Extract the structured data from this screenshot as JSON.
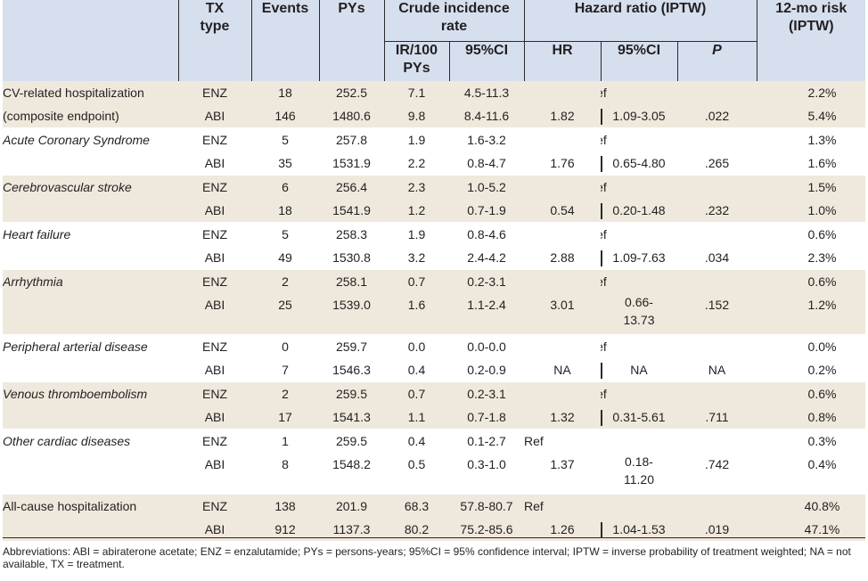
{
  "header": {
    "tx_type": "TX type",
    "events": "Events",
    "pys": "PYs",
    "crude": "Crude incidence rate",
    "ir": "IR/100 PYs",
    "ci95": "95%CI",
    "hazard": "Hazard ratio (IPTW)",
    "hr": "HR",
    "hr_ci": "95%CI",
    "p": "P",
    "risk": "12-mo risk (IPTW)"
  },
  "groups": [
    {
      "label": "CV-related hospitalization",
      "label2": "(composite endpoint)",
      "italic": false,
      "shade": true,
      "rows": [
        {
          "tx": "ENZ",
          "events": "18",
          "pys": "252.5",
          "ir": "7.1",
          "ci": "4.5-11.3",
          "hr": "",
          "hr_ci": "",
          "p": "",
          "ref": "Ref",
          "risk": "2.2%"
        },
        {
          "tx": "ABI",
          "events": "146",
          "pys": "1480.6",
          "ir": "9.8",
          "ci": "8.4-11.6",
          "hr": "1.82",
          "hr_ci": "1.09-3.05",
          "p": ".022",
          "ref": "",
          "risk": "5.4%"
        }
      ]
    },
    {
      "label": "Acute Coronary Syndrome",
      "italic": true,
      "shade": false,
      "rows": [
        {
          "tx": "ENZ",
          "events": "5",
          "pys": "257.8",
          "ir": "1.9",
          "ci": "1.6-3.2",
          "hr": "",
          "hr_ci": "",
          "p": "",
          "ref": "Ref",
          "risk": "1.3%"
        },
        {
          "tx": "ABI",
          "events": "35",
          "pys": "1531.9",
          "ir": "2.2",
          "ci": "0.8-4.7",
          "hr": "1.76",
          "hr_ci": "0.65-4.80",
          "p": ".265",
          "ref": "",
          "risk": "1.6%"
        }
      ]
    },
    {
      "label": "Cerebrovascular stroke",
      "italic": true,
      "shade": true,
      "rows": [
        {
          "tx": "ENZ",
          "events": "6",
          "pys": "256.4",
          "ir": "2.3",
          "ci": "1.0-5.2",
          "hr": "",
          "hr_ci": "",
          "p": "",
          "ref": "Ref",
          "risk": "1.5%"
        },
        {
          "tx": "ABI",
          "events": "18",
          "pys": "1541.9",
          "ir": "1.2",
          "ci": "0.7-1.9",
          "hr": "0.54",
          "hr_ci": "0.20-1.48",
          "p": ".232",
          "ref": "",
          "risk": "1.0%"
        }
      ]
    },
    {
      "label": "Heart failure",
      "italic": true,
      "shade": false,
      "rows": [
        {
          "tx": "ENZ",
          "events": "5",
          "pys": "258.3",
          "ir": "1.9",
          "ci": "0.8-4.6",
          "hr": "",
          "hr_ci": "",
          "p": "",
          "ref": "Ref",
          "risk": "0.6%"
        },
        {
          "tx": "ABI",
          "events": "49",
          "pys": "1530.8",
          "ir": "3.2",
          "ci": "2.4-4.2",
          "hr": "2.88",
          "hr_ci": "1.09-7.63",
          "p": ".034",
          "ref": "",
          "risk": "2.3%"
        }
      ]
    },
    {
      "label": "Arrhythmia",
      "italic": true,
      "shade": true,
      "rows": [
        {
          "tx": "ENZ",
          "events": "2",
          "pys": "258.1",
          "ir": "0.7",
          "ci": "0.2-3.1",
          "hr": "",
          "hr_ci": "",
          "p": "",
          "ref": "Ref",
          "risk": "0.6%"
        },
        {
          "tx": "ABI",
          "events": "25",
          "pys": "1539.0",
          "ir": "1.6",
          "ci": "1.1-2.4",
          "hr": "3.01",
          "hr_ci": "0.66-13.73",
          "p": ".152",
          "ref": "",
          "risk": "1.2%",
          "tall": true,
          "nobar": true
        }
      ]
    },
    {
      "label": "Peripheral arterial disease",
      "italic": true,
      "shade": false,
      "rows": [
        {
          "tx": "ENZ",
          "events": "0",
          "pys": "259.7",
          "ir": "0.0",
          "ci": "0.0-0.0",
          "hr": "",
          "hr_ci": "",
          "p": "",
          "ref": "Ref",
          "risk": "0.0%"
        },
        {
          "tx": "ABI",
          "events": "7",
          "pys": "1546.3",
          "ir": "0.4",
          "ci": "0.2-0.9",
          "hr": "NA",
          "hr_ci": "NA",
          "p": "NA",
          "ref": "",
          "risk": "0.2%"
        }
      ]
    },
    {
      "label": "Venous thromboembolism",
      "italic": true,
      "shade": true,
      "rows": [
        {
          "tx": "ENZ",
          "events": "2",
          "pys": "259.5",
          "ir": "0.7",
          "ci": "0.2-3.1",
          "hr": "",
          "hr_ci": "",
          "p": "",
          "ref": "Ref",
          "risk": "0.6%"
        },
        {
          "tx": "ABI",
          "events": "17",
          "pys": "1541.3",
          "ir": "1.1",
          "ci": "0.7-1.8",
          "hr": "1.32",
          "hr_ci": "0.31-5.61",
          "p": ".711",
          "ref": "",
          "risk": "0.8%"
        }
      ]
    },
    {
      "label": "Other cardiac diseases",
      "italic": true,
      "shade": false,
      "rows": [
        {
          "tx": "ENZ",
          "events": "1",
          "pys": "259.5",
          "ir": "0.4",
          "ci": "0.1-2.7",
          "hr": "Ref",
          "hr_ci": "",
          "p": "",
          "ref": "",
          "risk": "0.3%"
        },
        {
          "tx": "ABI",
          "events": "8",
          "pys": "1548.2",
          "ir": "0.5",
          "ci": "0.3-1.0",
          "hr": "1.37",
          "hr_ci": "0.18-11.20",
          "p": ".742",
          "ref": "",
          "risk": "0.4%",
          "tall": true,
          "nobar": true
        }
      ]
    },
    {
      "label": "All-cause hospitalization",
      "italic": false,
      "shade": true,
      "rows": [
        {
          "tx": "ENZ",
          "events": "138",
          "pys": "201.9",
          "ir": "68.3",
          "ci": "57.8-80.7",
          "hr": "Ref",
          "hr_ci": "",
          "p": "",
          "ref": "",
          "risk": "40.8%"
        },
        {
          "tx": "ABI",
          "events": "912",
          "pys": "1137.3",
          "ir": "80.2",
          "ci": "75.2-85.6",
          "hr": "1.26",
          "hr_ci": "1.04-1.53",
          "p": ".019",
          "ref": "",
          "risk": "47.1%"
        }
      ]
    }
  ],
  "footnote": "Abbreviations: ABI = abiraterone acetate; ENZ = enzalutamide; PYs = persons-years; 95%CI = 95% confidence interval; IPTW = inverse probability of treatment weighted; NA = not available, TX = treatment."
}
